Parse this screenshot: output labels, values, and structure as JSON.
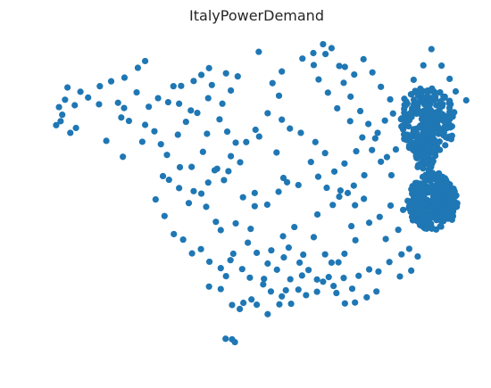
{
  "chart_data": {
    "type": "scatter",
    "title": "ItalyPowerDemand",
    "xlabel": "",
    "ylabel": "",
    "axes_visible": false,
    "grid": false,
    "marker_color": "#1f77b4",
    "xlim": [
      0,
      100
    ],
    "ylim": [
      0,
      100
    ],
    "points": [
      [
        1.3,
        73.0
      ],
      [
        3.7,
        69.2
      ],
      [
        5.1,
        70.8
      ],
      [
        0.2,
        71.7
      ],
      [
        1.7,
        75.1
      ],
      [
        4.8,
        78.2
      ],
      [
        10.8,
        78.5
      ],
      [
        15.5,
        79.0
      ],
      [
        16.3,
        74.2
      ],
      [
        17.0,
        77.3
      ],
      [
        20.1,
        82.4
      ],
      [
        18.2,
        73.1
      ],
      [
        22.2,
        71.8
      ],
      [
        24.5,
        69.7
      ],
      [
        21.5,
        66.3
      ],
      [
        12.6,
        66.6
      ],
      [
        16.7,
        61.4
      ],
      [
        26.1,
        65.5
      ],
      [
        23.1,
        77.7
      ],
      [
        25.4,
        80.5
      ],
      [
        29.2,
        84.4
      ],
      [
        27.9,
        79.2
      ],
      [
        30.6,
        78.7
      ],
      [
        33.5,
        76.5
      ],
      [
        32.3,
        72.8
      ],
      [
        30.3,
        68.6
      ],
      [
        27.6,
        62.0
      ],
      [
        30.8,
        58.0
      ],
      [
        33.7,
        58.1
      ],
      [
        36.5,
        63.0
      ],
      [
        37.5,
        68.9
      ],
      [
        35.1,
        75.7
      ],
      [
        37.8,
        80.5
      ],
      [
        38.7,
        84.8
      ],
      [
        34.2,
        86.1
      ],
      [
        31.1,
        84.5
      ],
      [
        36.1,
        88.1
      ],
      [
        38.0,
        90.3
      ],
      [
        42.2,
        88.6
      ],
      [
        45.1,
        87.6
      ],
      [
        43.4,
        83.0
      ],
      [
        41.3,
        78.7
      ],
      [
        40.6,
        73.6
      ],
      [
        42.5,
        69.6
      ],
      [
        44.6,
        66.0
      ],
      [
        43.4,
        61.6
      ],
      [
        42.8,
        56.7
      ],
      [
        40.0,
        57.5
      ],
      [
        45.7,
        59.6
      ],
      [
        47.2,
        66.2
      ],
      [
        49.5,
        70.2
      ],
      [
        52.5,
        75.6
      ],
      [
        55.3,
        81.3
      ],
      [
        53.7,
        85.4
      ],
      [
        56.0,
        89.2
      ],
      [
        50.3,
        95.6
      ],
      [
        56.0,
        73.5
      ],
      [
        50.4,
        68.0
      ],
      [
        54.7,
        62.8
      ],
      [
        56.4,
        54.5
      ],
      [
        33.0,
        46.3
      ],
      [
        37.3,
        45.1
      ],
      [
        39.7,
        40.2
      ],
      [
        40.9,
        37.5
      ],
      [
        44.6,
        39.7
      ],
      [
        48.3,
        37.9
      ],
      [
        49.3,
        45.3
      ],
      [
        56.3,
        35.5
      ],
      [
        57.7,
        31.8
      ],
      [
        61.3,
        29.5
      ],
      [
        63.9,
        35.2
      ],
      [
        66.7,
        29.6
      ],
      [
        68.3,
        26.9
      ],
      [
        71.5,
        29.8
      ],
      [
        73.2,
        38.8
      ],
      [
        74.1,
        45.6
      ],
      [
        77.6,
        39.9
      ],
      [
        74.2,
        34.2
      ],
      [
        81.7,
        34.6
      ],
      [
        84.8,
        37.6
      ],
      [
        70.0,
        27.0
      ],
      [
        67.6,
        22.2
      ],
      [
        61.0,
        22.7
      ],
      [
        57.0,
        17.9
      ],
      [
        55.4,
        13.3
      ],
      [
        52.5,
        10.1
      ],
      [
        48.5,
        14.9
      ],
      [
        45.6,
        11.8
      ],
      [
        43.7,
        13.1
      ],
      [
        40.9,
        18.3
      ],
      [
        42.2,
        22.5
      ],
      [
        38.0,
        19.1
      ],
      [
        43.3,
        27.7
      ],
      [
        47.6,
        33.4
      ],
      [
        49.8,
        30.1
      ],
      [
        52.5,
        26.6
      ],
      [
        54.8,
        24.6
      ],
      [
        51.6,
        21.6
      ],
      [
        58.1,
        21.5
      ],
      [
        60.1,
        18.1
      ],
      [
        62.0,
        16.3
      ],
      [
        64.7,
        17.4
      ],
      [
        66.2,
        20.7
      ],
      [
        68.8,
        19.3
      ],
      [
        71.3,
        21.9
      ],
      [
        73.4,
        18.4
      ],
      [
        75.0,
        22.6
      ],
      [
        77.6,
        24.7
      ],
      [
        79.9,
        24.0
      ],
      [
        82.6,
        27.1
      ],
      [
        85.6,
        29.6
      ],
      [
        87.5,
        31.4
      ],
      [
        89.6,
        28.9
      ],
      [
        88.0,
        24.3
      ],
      [
        85.2,
        22.4
      ],
      [
        79.4,
        17.5
      ],
      [
        77.0,
        15.6
      ],
      [
        74.1,
        13.9
      ],
      [
        71.6,
        13.6
      ],
      [
        69.5,
        17.0
      ],
      [
        64.7,
        21.4
      ],
      [
        62.6,
        24.5
      ],
      [
        60.4,
        26.9
      ],
      [
        56.5,
        28.6
      ],
      [
        53.4,
        30.9
      ],
      [
        59.1,
        38.5
      ],
      [
        64.8,
        42.6
      ],
      [
        68.6,
        45.7
      ],
      [
        70.2,
        48.4
      ],
      [
        72.3,
        49.6
      ],
      [
        76.3,
        47.7
      ],
      [
        80.2,
        41.8
      ],
      [
        82.9,
        45.5
      ],
      [
        86.0,
        44.1
      ],
      [
        88.4,
        40.7
      ],
      [
        91.1,
        38.4
      ],
      [
        93.0,
        41.7
      ],
      [
        90.8,
        46.9
      ],
      [
        94.6,
        50.2
      ],
      [
        96.7,
        53.3
      ],
      [
        83.1,
        55.4
      ],
      [
        80.5,
        59.8
      ],
      [
        78.3,
        63.6
      ],
      [
        75.9,
        67.7
      ],
      [
        72.9,
        73.0
      ],
      [
        69.7,
        77.2
      ],
      [
        67.4,
        82.3
      ],
      [
        65.1,
        86.6
      ],
      [
        63.9,
        91.3
      ],
      [
        66.8,
        94.9
      ],
      [
        70.2,
        91.0
      ],
      [
        71.3,
        85.5
      ],
      [
        73.0,
        81.0
      ],
      [
        75.4,
        76.3
      ],
      [
        77.4,
        72.1
      ],
      [
        79.7,
        69.2
      ],
      [
        81.5,
        73.2
      ],
      [
        83.5,
        75.5
      ],
      [
        86.3,
        80.3
      ],
      [
        88.6,
        86.5
      ],
      [
        91.0,
        91.2
      ],
      [
        93.0,
        96.5
      ],
      [
        95.5,
        91.1
      ],
      [
        97.5,
        86.8
      ],
      [
        99.0,
        82.7
      ],
      [
        101.6,
        79.8
      ],
      [
        93.9,
        80.2
      ],
      [
        91.2,
        75.4
      ],
      [
        88.6,
        70.4
      ],
      [
        86.8,
        66.9
      ],
      [
        84.2,
        63.8
      ],
      [
        82.0,
        61.3
      ],
      [
        79.1,
        67.4
      ],
      [
        74.4,
        63.2
      ],
      [
        71.5,
        59.2
      ],
      [
        69.0,
        56.6
      ],
      [
        66.7,
        62.6
      ],
      [
        64.3,
        66.2
      ],
      [
        60.7,
        69.2
      ],
      [
        58.0,
        70.6
      ],
      [
        22.2,
        92.6
      ],
      [
        20.4,
        90.4
      ],
      [
        17.1,
        87.2
      ],
      [
        13.8,
        86.0
      ],
      [
        11.0,
        84.4
      ],
      [
        8.1,
        80.7
      ],
      [
        6.2,
        82.6
      ],
      [
        3.0,
        84.0
      ],
      [
        0.9,
        77.6
      ],
      [
        2.4,
        80.0
      ],
      [
        26.6,
        55.1
      ],
      [
        28.1,
        53.9
      ],
      [
        30.6,
        51.2
      ],
      [
        34.2,
        50.2
      ],
      [
        36.1,
        49.4
      ],
      [
        37.8,
        53.0
      ],
      [
        39.4,
        57.0
      ],
      [
        41.7,
        53.8
      ],
      [
        46.4,
        48.2
      ],
      [
        49.3,
        49.6
      ],
      [
        24.8,
        47.5
      ],
      [
        27.0,
        42.1
      ],
      [
        29.3,
        36.2
      ],
      [
        31.6,
        34.4
      ],
      [
        33.8,
        29.9
      ],
      [
        36.0,
        31.3
      ],
      [
        38.1,
        27.2
      ],
      [
        40.9,
        25.1
      ],
      [
        44.0,
        29.8
      ],
      [
        46.2,
        24.8
      ],
      [
        48.1,
        22.0
      ],
      [
        51.4,
        19.8
      ],
      [
        53.3,
        17.5
      ],
      [
        56.0,
        15.9
      ],
      [
        58.3,
        13.5
      ],
      [
        43.7,
        1.9
      ],
      [
        42.1,
        2.1
      ],
      [
        44.4,
        1.0
      ],
      [
        46.5,
        13.8
      ],
      [
        49.8,
        13.2
      ],
      [
        52.4,
        45.8
      ],
      [
        55.2,
        50.0
      ],
      [
        57.3,
        53.1
      ],
      [
        60.1,
        52.2
      ],
      [
        63.2,
        59.7
      ],
      [
        65.0,
        54.9
      ],
      [
        67.1,
        51.3
      ],
      [
        70.5,
        50.4
      ],
      [
        73.8,
        52.0
      ],
      [
        76.4,
        55.4
      ],
      [
        61.1,
        93.4
      ],
      [
        63.8,
        95.2
      ],
      [
        66.2,
        98.1
      ],
      [
        68.3,
        96.8
      ],
      [
        71.6,
        90.7
      ],
      [
        73.9,
        88.2
      ],
      [
        76.2,
        93.2
      ],
      [
        78.4,
        88.9
      ],
      [
        80.5,
        84.2
      ],
      [
        82.8,
        80.1
      ]
    ],
    "cluster_upper": {
      "cx": 92.1,
      "cy": 72.8,
      "rx": 6.8,
      "ry": 11.5,
      "count": 260
    },
    "cluster_lower": {
      "cx": 93.3,
      "cy": 46.9,
      "rx": 6.2,
      "ry": 9.5,
      "count": 320
    },
    "cluster_bridge": {
      "cx": 91.3,
      "cy": 62.0,
      "rx": 2.5,
      "ry": 5.5,
      "count": 60
    }
  }
}
